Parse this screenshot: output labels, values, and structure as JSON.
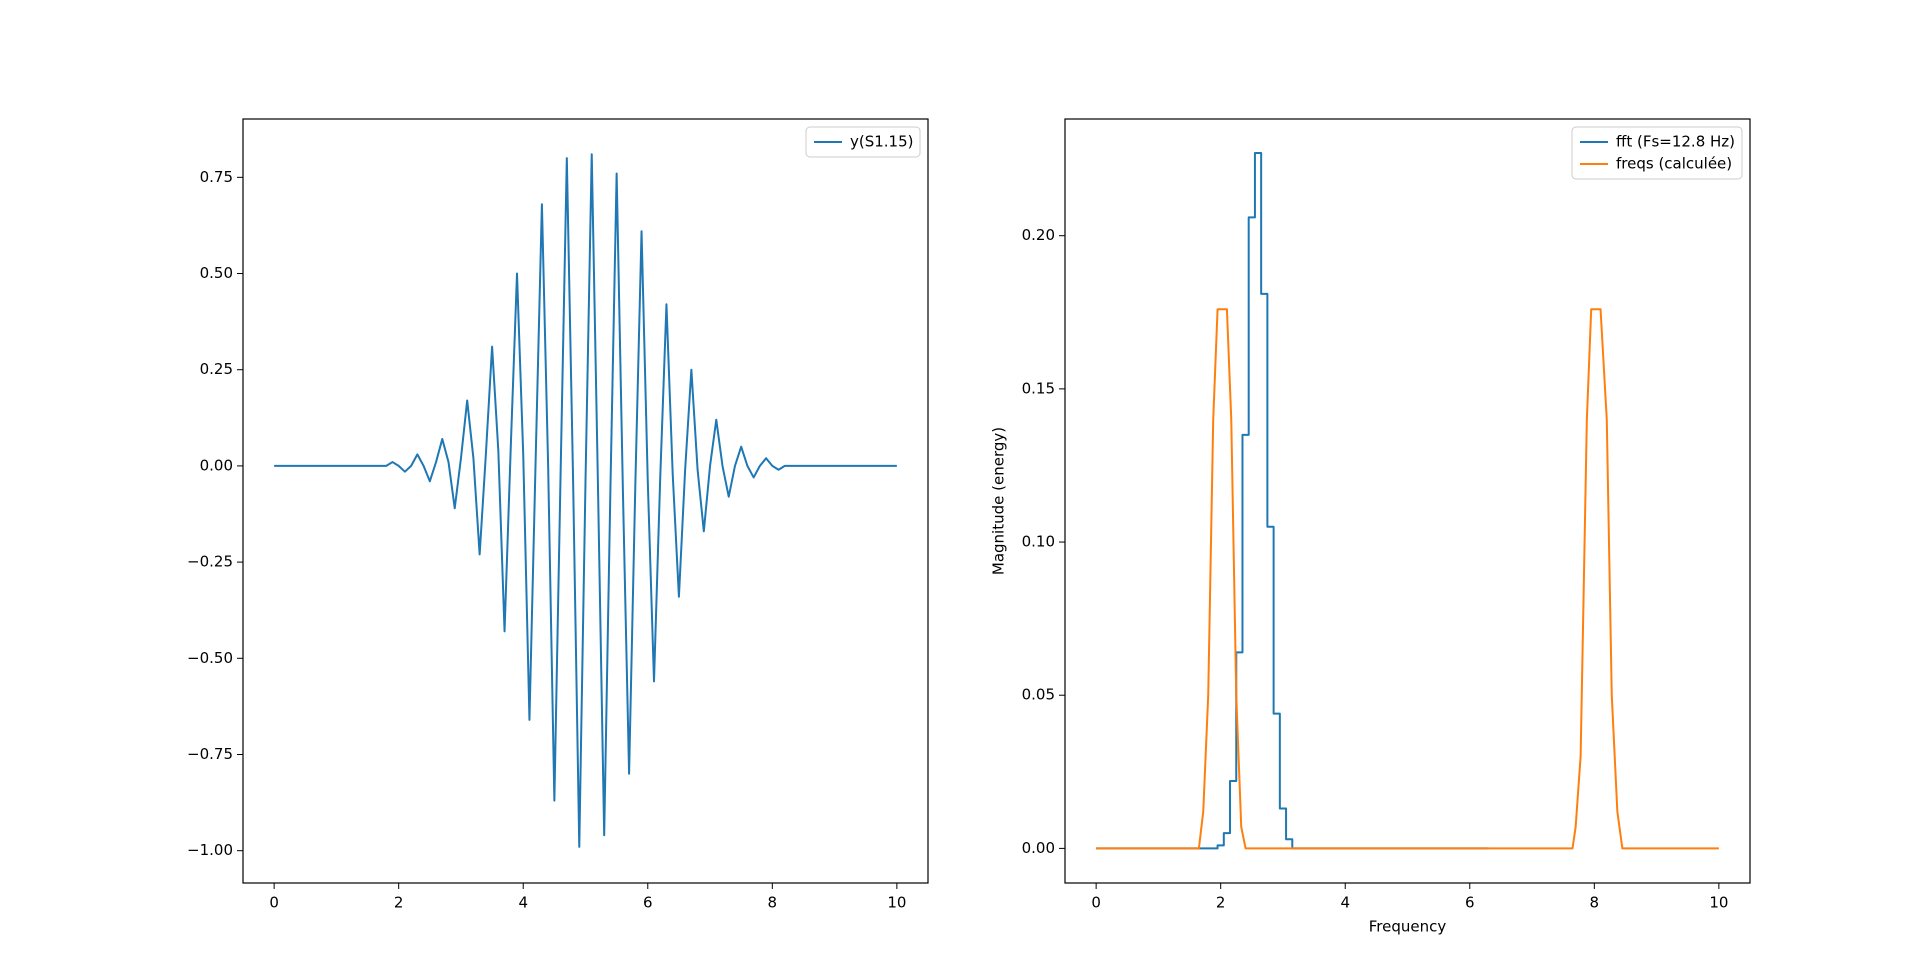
{
  "chart_data": [
    {
      "type": "line",
      "legend": "upper right",
      "xlim": [
        -0.5,
        10.5
      ],
      "ylim": [
        -1.084,
        0.9016
      ],
      "xticks": [
        0,
        2,
        4,
        6,
        8,
        10
      ],
      "yticks": [
        {
          "value": -1.0,
          "label": "−1.00"
        },
        {
          "value": -0.75,
          "label": "−0.75"
        },
        {
          "value": -0.5,
          "label": "−0.50"
        },
        {
          "value": -0.25,
          "label": "−0.25"
        },
        {
          "value": 0.0,
          "label": "0.00"
        },
        {
          "value": 0.25,
          "label": "0.25"
        },
        {
          "value": 0.5,
          "label": "0.50"
        },
        {
          "value": 0.75,
          "label": "0.75"
        }
      ],
      "series": [
        {
          "name": "y(S1.15)",
          "color": "#1f77b4",
          "x": [
            0,
            0.1,
            0.2,
            0.3,
            0.4,
            0.5,
            0.6,
            0.7,
            0.8,
            0.9,
            1,
            1.1,
            1.2,
            1.3,
            1.4,
            1.5,
            1.6,
            1.7,
            1.8,
            1.9,
            2,
            2.1,
            2.2,
            2.3,
            2.4,
            2.5,
            2.6,
            2.7,
            2.8,
            2.9,
            3,
            3.1,
            3.2,
            3.3,
            3.4,
            3.5,
            3.6,
            3.7,
            3.8,
            3.9,
            4,
            4.1,
            4.2,
            4.3,
            4.4,
            4.5,
            4.6,
            4.7,
            4.8,
            4.9,
            5,
            5.1,
            5.2,
            5.3,
            5.4,
            5.5,
            5.6,
            5.7,
            5.8,
            5.9,
            6,
            6.1,
            6.2,
            6.3,
            6.4,
            6.5,
            6.6,
            6.7,
            6.8,
            6.9,
            7,
            7.1,
            7.2,
            7.3,
            7.4,
            7.5,
            7.6,
            7.7,
            7.8,
            7.9,
            8,
            8.1,
            8.2,
            8.3,
            8.4,
            8.5,
            8.6,
            8.7,
            8.8,
            8.9,
            9,
            9.1,
            9.2,
            9.3,
            9.4,
            9.5,
            9.6,
            9.7,
            9.8,
            9.9,
            10
          ],
          "values": [
            0,
            0,
            0,
            0,
            0,
            0,
            0,
            0,
            0,
            0,
            0,
            0,
            0,
            0,
            0,
            0,
            0,
            0,
            0,
            0.01,
            0,
            -0.015,
            0,
            0.03,
            0,
            -0.04,
            0.01,
            0.07,
            0.01,
            -0.11,
            0.02,
            0.17,
            0.02,
            -0.23,
            0.03,
            0.31,
            0.04,
            -0.43,
            0.05,
            0.5,
            0.03,
            -0.66,
            0.02,
            0.68,
            0,
            -0.87,
            -0.02,
            0.8,
            -0.03,
            -0.99,
            -0.04,
            0.81,
            -0.05,
            -0.96,
            -0.06,
            0.76,
            -0.06,
            -0.8,
            -0.05,
            0.61,
            -0.04,
            -0.56,
            -0.03,
            0.42,
            -0.02,
            -0.34,
            -0.01,
            0.25,
            -0.01,
            -0.17,
            0,
            0.12,
            0,
            -0.08,
            0,
            0.05,
            0,
            -0.03,
            0,
            0.02,
            0,
            -0.01,
            0,
            0,
            0,
            0,
            0,
            0,
            0,
            0,
            0,
            0,
            0,
            0,
            0,
            0,
            0,
            0,
            0,
            0,
            0
          ]
        }
      ]
    },
    {
      "type": "line",
      "legend": "upper right",
      "xlabel": "Frequency",
      "ylabel": "Magnitude (energy)",
      "xlim": [
        -0.5,
        10.5
      ],
      "ylim": [
        -0.0113,
        0.2381
      ],
      "xticks": [
        0,
        2,
        4,
        6,
        8,
        10
      ],
      "yticks": [
        {
          "value": 0.0,
          "label": "0.00"
        },
        {
          "value": 0.05,
          "label": "0.05"
        },
        {
          "value": 0.1,
          "label": "0.10"
        },
        {
          "value": 0.15,
          "label": "0.15"
        },
        {
          "value": 0.2,
          "label": "0.20"
        }
      ],
      "series": [
        {
          "name": "fft (Fs=12.8 Hz)",
          "color": "#1f77b4",
          "drawstyle": "steps-mid",
          "x": [
            0,
            0.1,
            0.2,
            0.3,
            0.4,
            0.5,
            0.6,
            0.7,
            0.8,
            0.9,
            1,
            1.1,
            1.2,
            1.3,
            1.4,
            1.5,
            1.6,
            1.7,
            1.8,
            1.9,
            2,
            2.1,
            2.2,
            2.3,
            2.4,
            2.5,
            2.6,
            2.7,
            2.8,
            2.9,
            3,
            3.1,
            3.2,
            3.3,
            3.4,
            3.5,
            3.6,
            3.7,
            3.8,
            3.9,
            4,
            4.1,
            4.2,
            4.3,
            4.4,
            4.5,
            4.6,
            4.7,
            4.8,
            4.9,
            5,
            5.1,
            5.2,
            5.3,
            5.4,
            5.5,
            5.6,
            5.7,
            5.8,
            5.9,
            6,
            6.1,
            6.2,
            6.3
          ],
          "values": [
            0,
            0,
            0,
            0,
            0,
            0,
            0,
            0,
            0,
            0,
            0,
            0,
            0,
            0,
            0,
            0,
            0,
            0,
            0,
            0,
            0.001,
            0.005,
            0.022,
            0.064,
            0.135,
            0.206,
            0.227,
            0.181,
            0.105,
            0.044,
            0.013,
            0.003,
            0,
            0,
            0,
            0,
            0,
            0,
            0,
            0,
            0,
            0,
            0,
            0,
            0,
            0,
            0,
            0,
            0,
            0,
            0,
            0,
            0,
            0,
            0,
            0,
            0,
            0,
            0,
            0,
            0,
            0,
            0,
            0
          ]
        },
        {
          "name": "freqs (calculée)",
          "color": "#ff7f0e",
          "x": [
            0,
            1.65,
            1.72,
            1.8,
            1.88,
            1.95,
            2.1,
            2.17,
            2.25,
            2.33,
            2.4,
            7.65,
            7.7,
            7.78,
            7.88,
            7.95,
            8.1,
            8.2,
            8.28,
            8.37,
            8.45,
            10
          ],
          "values": [
            0,
            0,
            0.012,
            0.05,
            0.14,
            0.176,
            0.176,
            0.14,
            0.05,
            0.007,
            0,
            0,
            0.007,
            0.03,
            0.14,
            0.176,
            0.176,
            0.14,
            0.05,
            0.012,
            0,
            0
          ]
        }
      ]
    }
  ]
}
